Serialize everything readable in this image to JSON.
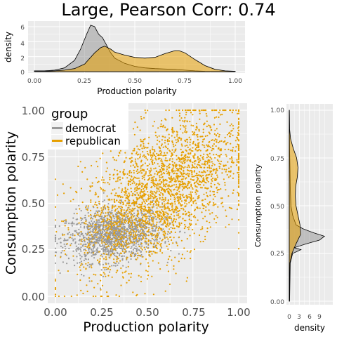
{
  "chart_data": [
    {
      "id": "top_density",
      "type": "area",
      "title": "Large, Pearson Corr: 0.74",
      "xlabel": "Production polarity",
      "ylabel": "density",
      "xlim": [
        0,
        1
      ],
      "ylim": [
        0,
        6.5
      ],
      "x_ticks": [
        "0.00",
        "0.25",
        "0.50",
        "0.75",
        "1.00"
      ],
      "y_ticks": [
        "0",
        "2",
        "4",
        "6"
      ],
      "grid": true,
      "series": [
        {
          "name": "democrat",
          "color": "#999999",
          "x": [
            0.0,
            0.05,
            0.1,
            0.15,
            0.2,
            0.23,
            0.26,
            0.28,
            0.3,
            0.32,
            0.34,
            0.36,
            0.38,
            0.4,
            0.45,
            0.5,
            0.55,
            0.6,
            0.65,
            0.7,
            0.75,
            0.8,
            0.85,
            1.0
          ],
          "y": [
            0.1,
            0.1,
            0.2,
            0.5,
            1.5,
            3.0,
            5.0,
            6.2,
            6.0,
            5.0,
            4.5,
            3.5,
            2.5,
            1.8,
            1.1,
            0.7,
            0.5,
            0.4,
            0.35,
            0.3,
            0.2,
            0.1,
            0.05,
            0.02
          ]
        },
        {
          "name": "republican",
          "color": "#E69F00",
          "x": [
            0.0,
            0.05,
            0.1,
            0.15,
            0.2,
            0.25,
            0.3,
            0.33,
            0.35,
            0.38,
            0.4,
            0.45,
            0.5,
            0.55,
            0.6,
            0.65,
            0.7,
            0.72,
            0.75,
            0.8,
            0.85,
            0.9,
            0.95,
            1.0
          ],
          "y": [
            0.05,
            0.05,
            0.1,
            0.2,
            0.4,
            1.0,
            2.5,
            3.2,
            3.4,
            3.0,
            2.6,
            2.2,
            1.9,
            1.8,
            1.9,
            2.4,
            2.8,
            2.8,
            2.5,
            1.6,
            0.8,
            0.3,
            0.1,
            0.05
          ]
        }
      ]
    },
    {
      "id": "main_scatter",
      "type": "scatter",
      "xlabel": "Production polarity",
      "ylabel": "Consumption polarity",
      "xlim": [
        -0.04,
        1.04
      ],
      "ylim": [
        -0.04,
        1.04
      ],
      "x_ticks": [
        "0.00",
        "0.25",
        "0.50",
        "0.75",
        "1.00"
      ],
      "y_ticks": [
        "0.00",
        "0.25",
        "0.50",
        "0.75",
        "1.00"
      ],
      "grid": true,
      "legend": {
        "title": "group",
        "position": "top-left",
        "entries": [
          "democrat",
          "republican"
        ]
      },
      "series": [
        {
          "name": "democrat",
          "color": "#999999",
          "x_center": 0.32,
          "y_center": 0.33,
          "x_spread": 0.13,
          "y_spread": 0.07
        },
        {
          "name": "republican",
          "color": "#E69F00",
          "x_center": 0.58,
          "y_center": 0.62,
          "x_spread": 0.22,
          "y_spread": 0.18
        }
      ]
    },
    {
      "id": "right_density",
      "type": "area",
      "xlabel": "density",
      "ylabel": "Consumption polarity",
      "xlim": [
        0,
        12
      ],
      "ylim": [
        0,
        1
      ],
      "x_ticks": [
        "0",
        "3",
        "6",
        "9"
      ],
      "y_ticks": [
        "0.00",
        "0.25",
        "0.50",
        "0.75",
        "1.00"
      ],
      "grid": true,
      "series": [
        {
          "name": "democrat",
          "color": "#999999",
          "y": [
            0.0,
            0.2,
            0.25,
            0.27,
            0.28,
            0.3,
            0.32,
            0.34,
            0.36,
            0.38,
            0.4,
            0.45,
            0.5,
            0.6,
            0.7,
            0.8,
            1.0
          ],
          "x": [
            0.1,
            0.3,
            1.0,
            3.5,
            1.5,
            5.0,
            9.0,
            10.5,
            7.0,
            4.0,
            2.0,
            1.0,
            0.5,
            0.3,
            0.2,
            0.1,
            0.05
          ]
        },
        {
          "name": "republican",
          "color": "#E69F00",
          "y": [
            0.0,
            0.2,
            0.25,
            0.3,
            0.35,
            0.4,
            0.45,
            0.5,
            0.55,
            0.6,
            0.65,
            0.7,
            0.75,
            0.8,
            0.85,
            0.9,
            1.0
          ],
          "x": [
            0.05,
            0.2,
            0.8,
            2.0,
            3.4,
            3.2,
            2.6,
            2.0,
            1.8,
            1.9,
            2.4,
            2.6,
            2.2,
            1.2,
            0.4,
            0.1,
            0.02
          ]
        }
      ]
    }
  ]
}
